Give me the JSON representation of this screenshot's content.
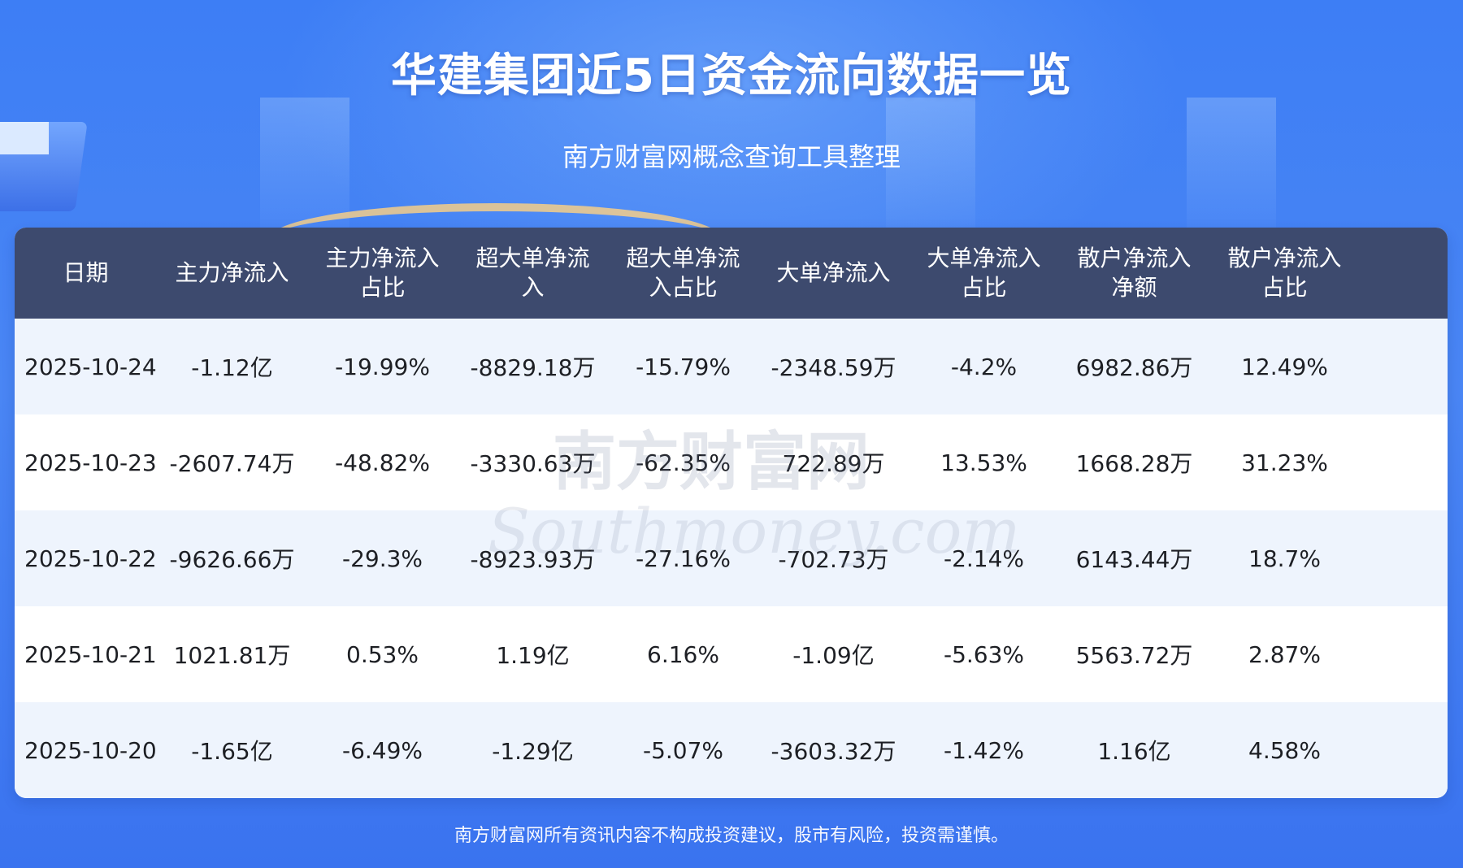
{
  "title": "华建集团近5日资金流向数据一览",
  "subtitle": "南方财富网概念查询工具整理",
  "table": {
    "headers": [
      "日期",
      "主力净流入",
      "主力净流入\n占比",
      "超大单净流\n入",
      "超大单净流\n入占比",
      "大单净流入",
      "大单净流入\n占比",
      "散户净流入\n净额",
      "散户净流入\n占比"
    ],
    "rows": [
      [
        "2025-10-24",
        "-1.12亿",
        "-19.99%",
        "-8829.18万",
        "-15.79%",
        "-2348.59万",
        "-4.2%",
        "6982.86万",
        "12.49%"
      ],
      [
        "2025-10-23",
        "-2607.74万",
        "-48.82%",
        "-3330.63万",
        "-62.35%",
        "722.89万",
        "13.53%",
        "1668.28万",
        "31.23%"
      ],
      [
        "2025-10-22",
        "-9626.66万",
        "-29.3%",
        "-8923.93万",
        "-27.16%",
        "-702.73万",
        "-2.14%",
        "6143.44万",
        "18.7%"
      ],
      [
        "2025-10-21",
        "1021.81万",
        "0.53%",
        "1.19亿",
        "6.16%",
        "-1.09亿",
        "-5.63%",
        "5563.72万",
        "2.87%"
      ],
      [
        "2025-10-20",
        "-1.65亿",
        "-6.49%",
        "-1.29亿",
        "-5.07%",
        "-3603.32万",
        "-1.42%",
        "1.16亿",
        "4.58%"
      ]
    ]
  },
  "watermark": {
    "text_cn": "南方财富网",
    "text_en": "Southmoney.com"
  },
  "footer": "南方财富网所有资讯内容不构成投资建议，股市有风险，投资需谨慎。",
  "colors": {
    "background": "#4a86f4",
    "header_bg": "#3d4a6e",
    "row_alt": "#eef4fd",
    "text": "#1d1f24"
  }
}
